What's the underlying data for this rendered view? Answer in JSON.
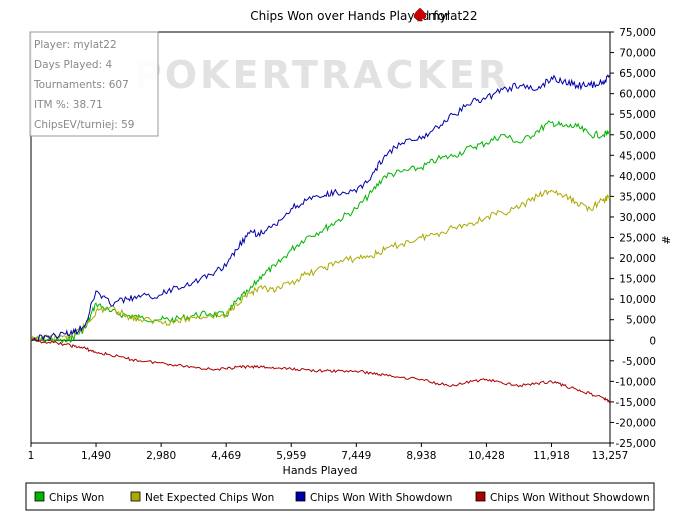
{
  "chart_data": {
    "type": "line",
    "title": "Chips Won over Hands Played for",
    "title_player": "mylat22",
    "title_icon": "spade-icon",
    "xlabel": "Hands Played",
    "ylabel": "#",
    "xlim": [
      1,
      13257
    ],
    "ylim": [
      -25000,
      75000
    ],
    "xticks": [
      1,
      1490,
      2980,
      4469,
      5959,
      7449,
      8938,
      10428,
      11918,
      13257
    ],
    "xtick_labels": [
      "1",
      "1,490",
      "2,980",
      "4,469",
      "5,959",
      "7,449",
      "8,938",
      "10,428",
      "11,918",
      "13,257"
    ],
    "yticks": [
      -25000,
      -20000,
      -15000,
      -10000,
      -5000,
      0,
      5000,
      10000,
      15000,
      20000,
      25000,
      30000,
      35000,
      40000,
      45000,
      50000,
      55000,
      60000,
      65000,
      70000,
      75000
    ],
    "ytick_labels": [
      "-25,000",
      "-20,000",
      "-15,000",
      "-10,000",
      "-5,000",
      "0",
      "5,000",
      "10,000",
      "15,000",
      "20,000",
      "25,000",
      "30,000",
      "35,000",
      "40,000",
      "45,000",
      "50,000",
      "55,000",
      "60,000",
      "65,000",
      "70,000",
      "75,000"
    ],
    "grid": false,
    "legend_position": "bottom",
    "watermark": "POKERTRACKER",
    "info_box": [
      "Player: mylat22",
      "Days Played: 4",
      "Tournaments: 607",
      "ITM %: 38.71",
      "ChipsEV/turniej: 59"
    ],
    "series": [
      {
        "name": "Chips Won",
        "color": "#00b400",
        "x": [
          1,
          400,
          800,
          1000,
          1250,
          1490,
          1800,
          2200,
          2500,
          2980,
          3300,
          3700,
          4100,
          4469,
          4700,
          5000,
          5300,
          5600,
          5959,
          6300,
          6700,
          7000,
          7449,
          7800,
          8100,
          8500,
          8938,
          9300,
          9700,
          10100,
          10428,
          10800,
          11200,
          11600,
          11918,
          12200,
          12500,
          12800,
          13100,
          13257
        ],
        "y": [
          0,
          200,
          -400,
          1000,
          3000,
          9000,
          7000,
          6000,
          5500,
          5000,
          5000,
          6000,
          6500,
          6000,
          9500,
          12000,
          16000,
          18000,
          22000,
          25000,
          27000,
          29000,
          32000,
          36000,
          40000,
          41000,
          42000,
          44000,
          45000,
          47000,
          48000,
          50000,
          48000,
          51000,
          53000,
          52000,
          52000,
          50000,
          50000,
          50500
        ]
      },
      {
        "name": "Net Expected Chips Won",
        "color": "#aaaa00",
        "x": [
          1,
          400,
          800,
          1000,
          1250,
          1490,
          1800,
          2200,
          2500,
          2980,
          3300,
          3700,
          4100,
          4469,
          4700,
          5000,
          5300,
          5600,
          5959,
          6300,
          6700,
          7000,
          7449,
          7800,
          8100,
          8500,
          8938,
          9300,
          9700,
          10100,
          10428,
          10800,
          11200,
          11600,
          11918,
          12200,
          12500,
          12800,
          13100,
          13257
        ],
        "y": [
          0,
          500,
          800,
          1500,
          3500,
          7000,
          8000,
          6000,
          5000,
          4500,
          4500,
          5500,
          6000,
          6000,
          9000,
          11500,
          12500,
          12000,
          14000,
          16000,
          17500,
          19000,
          20000,
          20500,
          22000,
          23500,
          25000,
          26000,
          27500,
          28500,
          30000,
          31000,
          32500,
          35000,
          36500,
          35000,
          33500,
          32000,
          34000,
          35000
        ]
      },
      {
        "name": "Chips Won With Showdown",
        "color": "#0000aa",
        "x": [
          1,
          400,
          800,
          1000,
          1250,
          1490,
          1800,
          2200,
          2500,
          2980,
          3300,
          3700,
          4100,
          4469,
          4700,
          5000,
          5300,
          5600,
          5959,
          6300,
          6700,
          7000,
          7449,
          7800,
          8100,
          8500,
          8938,
          9300,
          9700,
          10100,
          10428,
          10800,
          11200,
          11600,
          11918,
          12200,
          12500,
          12800,
          13100,
          13257
        ],
        "y": [
          0,
          1000,
          1500,
          2000,
          4000,
          12000,
          9000,
          10000,
          10500,
          11000,
          13000,
          14000,
          16000,
          18000,
          22000,
          26000,
          26000,
          28000,
          32000,
          34000,
          35000,
          36000,
          36000,
          40000,
          45000,
          48000,
          49000,
          52000,
          55000,
          58000,
          59000,
          61000,
          62000,
          61000,
          64000,
          63000,
          62000,
          62000,
          63000,
          64000
        ]
      },
      {
        "name": "Chips Won Without Showdown",
        "color": "#aa0000",
        "x": [
          1,
          400,
          800,
          1000,
          1250,
          1490,
          1800,
          2200,
          2500,
          2980,
          3300,
          3700,
          4100,
          4469,
          4700,
          5000,
          5300,
          5600,
          5959,
          6300,
          6700,
          7000,
          7449,
          7800,
          8100,
          8500,
          8938,
          9300,
          9700,
          10100,
          10428,
          10800,
          11200,
          11600,
          11918,
          12200,
          12500,
          12800,
          13100,
          13257
        ],
        "y": [
          0,
          -500,
          -1000,
          -1500,
          -2000,
          -3000,
          -3500,
          -4500,
          -5000,
          -5500,
          -6000,
          -6500,
          -7000,
          -7000,
          -6500,
          -6500,
          -6500,
          -6800,
          -7000,
          -7200,
          -7500,
          -7500,
          -7500,
          -8000,
          -8500,
          -9000,
          -9500,
          -10500,
          -11000,
          -10000,
          -9500,
          -10500,
          -11000,
          -10500,
          -10000,
          -11000,
          -12000,
          -13000,
          -14000,
          -15000
        ]
      }
    ]
  }
}
